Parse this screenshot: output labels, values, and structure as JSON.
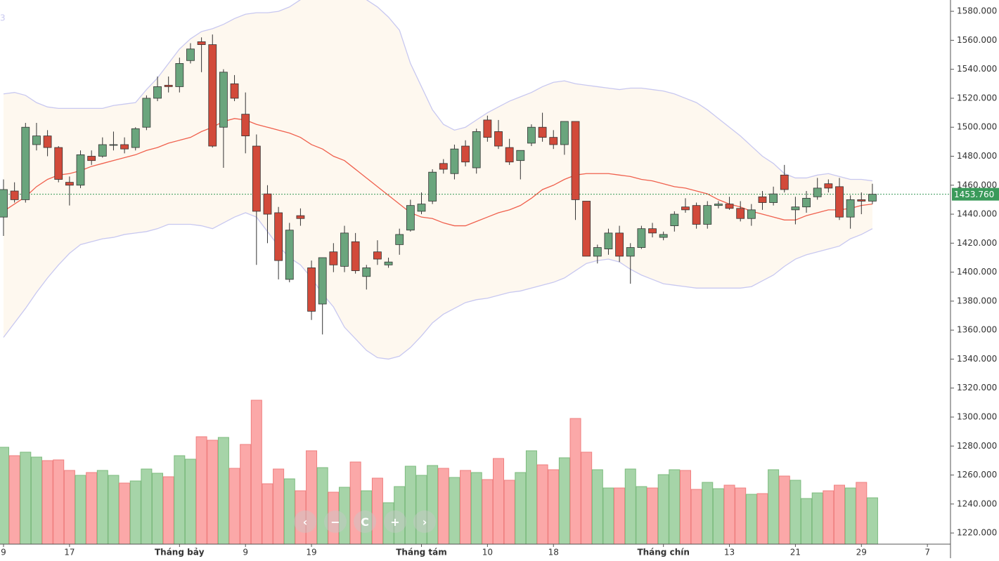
{
  "chart_data": {
    "type": "candlestick",
    "corner_label": "3",
    "open": [
      1438,
      1456,
      1450,
      1488,
      1494,
      1486,
      1462,
      1460,
      1480,
      1480,
      1488,
      1488,
      1486,
      1500,
      1520,
      1529,
      1528,
      1546,
      1559,
      1557,
      1500,
      1530,
      1509,
      1487,
      1454,
      1441,
      1395,
      1439,
      1403,
      1378,
      1414,
      1404,
      1421,
      1397,
      1414,
      1405,
      1419,
      1429,
      1442,
      1449,
      1475,
      1468,
      1487,
      1472,
      1505,
      1497,
      1486,
      1477,
      1489,
      1500,
      1493,
      1488,
      1504,
      1449,
      1411,
      1416,
      1427,
      1411,
      1417,
      1430,
      1424,
      1432,
      1445,
      1446,
      1433,
      1446,
      1447,
      1444,
      1437,
      1452,
      1448,
      1467,
      1443,
      1445,
      1452,
      1461,
      1459,
      1438,
      1450,
      1449
    ],
    "high": [
      1464,
      1462,
      1503,
      1503,
      1498,
      1487,
      1466,
      1484,
      1484,
      1493,
      1497,
      1493,
      1500,
      1522,
      1535,
      1535,
      1548,
      1558,
      1562,
      1564,
      1540,
      1536,
      1524,
      1495,
      1460,
      1445,
      1434,
      1444,
      1408,
      1410,
      1420,
      1432,
      1427,
      1405,
      1422,
      1410,
      1430,
      1450,
      1455,
      1471,
      1478,
      1488,
      1491,
      1499,
      1508,
      1505,
      1492,
      1484,
      1502,
      1510,
      1498,
      1504,
      1504,
      1449,
      1419,
      1430,
      1432,
      1420,
      1432,
      1434,
      1428,
      1442,
      1451,
      1448,
      1449,
      1449,
      1452,
      1449,
      1447,
      1456,
      1459,
      1474,
      1452,
      1456,
      1465,
      1464,
      1465,
      1453,
      1455,
      1461
    ],
    "low": [
      1425,
      1448,
      1448,
      1484,
      1480,
      1462,
      1446,
      1458,
      1474,
      1479,
      1484,
      1482,
      1484,
      1498,
      1518,
      1524,
      1524,
      1544,
      1538,
      1486,
      1472,
      1518,
      1482,
      1405,
      1420,
      1395,
      1393,
      1432,
      1367,
      1357,
      1400,
      1400,
      1399,
      1388,
      1405,
      1403,
      1412,
      1428,
      1440,
      1447,
      1468,
      1464,
      1473,
      1468,
      1490,
      1485,
      1474,
      1464,
      1487,
      1490,
      1485,
      1481,
      1436,
      1411,
      1406,
      1412,
      1407,
      1392,
      1416,
      1424,
      1422,
      1428,
      1441,
      1430,
      1430,
      1444,
      1443,
      1435,
      1432,
      1443,
      1446,
      1455,
      1433,
      1441,
      1450,
      1455,
      1436,
      1430,
      1440,
      1447
    ],
    "close": [
      1457,
      1450,
      1500,
      1494,
      1486,
      1464,
      1460,
      1481,
      1477,
      1488,
      1488,
      1485,
      1499,
      1520,
      1528,
      1528,
      1544,
      1554,
      1557,
      1487,
      1538,
      1520,
      1494,
      1442,
      1440,
      1408,
      1429,
      1437,
      1373,
      1410,
      1405,
      1427,
      1401,
      1403,
      1409,
      1407,
      1426,
      1446,
      1447,
      1469,
      1471,
      1485,
      1476,
      1497,
      1493,
      1487,
      1476,
      1484,
      1500,
      1493,
      1488,
      1504,
      1450,
      1411,
      1417,
      1427,
      1411,
      1417,
      1430,
      1427,
      1426,
      1440,
      1443,
      1433,
      1446,
      1447,
      1444,
      1437,
      1443,
      1448,
      1454,
      1457,
      1445,
      1451,
      1458,
      1458,
      1438,
      1450,
      1449,
      1453.76
    ],
    "volume": [
      138,
      126,
      131,
      124,
      119,
      120,
      105,
      98,
      102,
      105,
      98,
      87,
      90,
      107,
      101,
      96,
      126,
      121,
      153,
      148,
      152,
      108,
      142,
      205,
      86,
      107,
      93,
      76,
      133,
      109,
      74,
      81,
      117,
      76,
      94,
      59,
      82,
      111,
      98,
      112,
      108,
      95,
      105,
      102,
      92,
      122,
      91,
      102,
      133,
      113,
      106,
      123,
      179,
      131,
      106,
      80,
      80,
      107,
      82,
      80,
      99,
      106,
      105,
      78,
      88,
      79,
      84,
      80,
      71,
      72,
      106,
      97,
      91,
      65,
      73,
      76,
      84,
      80,
      88,
      66
    ],
    "ma": [
      1442,
      1447,
      1452,
      1459,
      1464,
      1467,
      1468,
      1470,
      1473,
      1475,
      1477,
      1479,
      1481,
      1484,
      1486,
      1489,
      1491,
      1493,
      1497,
      1500,
      1504,
      1506,
      1505,
      1502,
      1500,
      1498,
      1496,
      1493,
      1488,
      1485,
      1480,
      1477,
      1471,
      1465,
      1459,
      1453,
      1447,
      1441,
      1438,
      1437,
      1434,
      1432,
      1432,
      1435,
      1438,
      1441,
      1443,
      1446,
      1451,
      1457,
      1460,
      1464,
      1467,
      1468,
      1468,
      1468,
      1467,
      1466,
      1464,
      1463,
      1461,
      1459,
      1458,
      1456,
      1454,
      1450,
      1447,
      1445,
      1442,
      1440,
      1438,
      1436,
      1436,
      1439,
      1441,
      1443,
      1443,
      1444,
      1446,
      1447
    ],
    "upper_band": [
      1523,
      1524,
      1522,
      1517,
      1514,
      1513,
      1513,
      1513,
      1513,
      1513,
      1515,
      1516,
      1517,
      1526,
      1534,
      1544,
      1554,
      1561,
      1566,
      1568,
      1571,
      1575,
      1578,
      1579,
      1579,
      1580,
      1583,
      1588,
      1592,
      1596,
      1598,
      1596,
      1592,
      1588,
      1583,
      1576,
      1567,
      1544,
      1528,
      1512,
      1502,
      1498,
      1500,
      1505,
      1510,
      1514,
      1518,
      1521,
      1524,
      1528,
      1531,
      1532,
      1530,
      1529,
      1528,
      1527,
      1526,
      1527,
      1527,
      1526,
      1525,
      1523,
      1520,
      1517,
      1512,
      1506,
      1500,
      1494,
      1487,
      1480,
      1475,
      1468,
      1465,
      1465,
      1467,
      1468,
      1466,
      1464,
      1464,
      1463
    ],
    "lower_band": [
      1355,
      1365,
      1375,
      1386,
      1396,
      1405,
      1413,
      1419,
      1421,
      1423,
      1424,
      1426,
      1427,
      1428,
      1430,
      1433,
      1433,
      1433,
      1432,
      1430,
      1434,
      1438,
      1441,
      1438,
      1428,
      1418,
      1410,
      1405,
      1396,
      1385,
      1376,
      1362,
      1354,
      1346,
      1341,
      1340,
      1342,
      1348,
      1356,
      1365,
      1371,
      1375,
      1379,
      1381,
      1382,
      1384,
      1386,
      1387,
      1389,
      1391,
      1393,
      1396,
      1401,
      1406,
      1408,
      1409,
      1407,
      1402,
      1398,
      1395,
      1392,
      1391,
      1390,
      1389,
      1389,
      1389,
      1389,
      1389,
      1390,
      1394,
      1398,
      1404,
      1409,
      1412,
      1414,
      1416,
      1418,
      1423,
      1426,
      1430
    ],
    "up_color": "#6aa57d",
    "down_color": "#d24a3a",
    "ma_color": "#f0604d",
    "band_color": "#c8c8f0",
    "last_price": 1453.76,
    "last_price_label": "1453.760",
    "xlim": [
      -0.32,
      86.1
    ],
    "xticks": [
      {
        "value": 0,
        "label": "9"
      },
      {
        "value": 6,
        "label": "17"
      },
      {
        "value": 16,
        "label": "Tháng bảy"
      },
      {
        "value": 22,
        "label": "9"
      },
      {
        "value": 28,
        "label": "19"
      },
      {
        "value": 38,
        "label": "Tháng tám"
      },
      {
        "value": 44,
        "label": "10"
      },
      {
        "value": 50,
        "label": "18"
      },
      {
        "value": 60,
        "label": "Tháng chín"
      },
      {
        "value": 66,
        "label": "13"
      },
      {
        "value": 72,
        "label": "21"
      },
      {
        "value": 78,
        "label": "29"
      },
      {
        "value": 84,
        "label": "7"
      }
    ],
    "ylim": [
      1212.3,
      1587.8
    ],
    "yticks": [
      {
        "value": 1220,
        "label": "1220.000"
      },
      {
        "value": 1240,
        "label": "1240.000"
      },
      {
        "value": 1260,
        "label": "1260.000"
      },
      {
        "value": 1280,
        "label": "1280.000"
      },
      {
        "value": 1300,
        "label": "1300.000"
      },
      {
        "value": 1320,
        "label": "1320.000"
      },
      {
        "value": 1340,
        "label": "1340.000"
      },
      {
        "value": 1360,
        "label": "1360.000"
      },
      {
        "value": 1380,
        "label": "1380.000"
      },
      {
        "value": 1400,
        "label": "1400.000"
      },
      {
        "value": 1420,
        "label": "1420.000"
      },
      {
        "value": 1440,
        "label": "1440.000"
      },
      {
        "value": 1460,
        "label": "1460.000"
      },
      {
        "value": 1480,
        "label": "1480.000"
      },
      {
        "value": 1500,
        "label": "1500.000"
      },
      {
        "value": 1520,
        "label": "1520.000"
      },
      {
        "value": 1540,
        "label": "1540.000"
      },
      {
        "value": 1560,
        "label": "1560.000"
      },
      {
        "value": 1580,
        "label": "1580.000"
      }
    ],
    "volume_ylim": [
      0,
      240
    ]
  }
}
